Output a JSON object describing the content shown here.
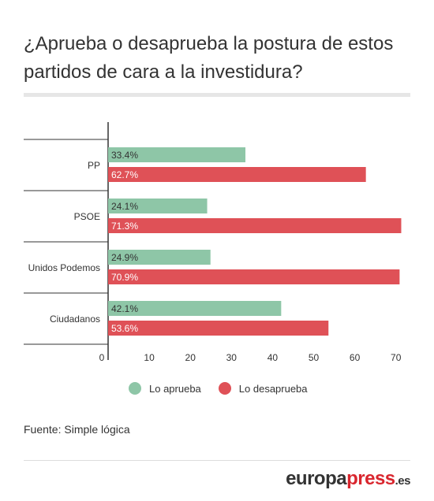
{
  "title": "¿Aprueba o desaprueba la postura de estos partidos de cara a la investidura?",
  "source": "Fuente: Simple lógica",
  "brand": {
    "part1": "europa",
    "part2": "press",
    "part3": ".es"
  },
  "colors": {
    "aprueba": "#8ec6a7",
    "desaprueba": "#df5157",
    "axis": "#333333",
    "text": "#333333"
  },
  "legend": [
    {
      "label": "Lo aprueba",
      "color": "#8ec6a7"
    },
    {
      "label": "Lo desaprueba",
      "color": "#df5157"
    }
  ],
  "chart_data": {
    "type": "bar",
    "orientation": "horizontal",
    "categories": [
      "PP",
      "PSOE",
      "Unidos Podemos",
      "Ciudadanos"
    ],
    "series": [
      {
        "name": "Lo aprueba",
        "values": [
          33.4,
          24.1,
          24.9,
          42.1
        ],
        "labels": [
          "33.4%",
          "24.1%",
          "24.9%",
          "42.1%"
        ],
        "color": "#8ec6a7"
      },
      {
        "name": "Lo desaprueba",
        "values": [
          62.7,
          71.3,
          70.9,
          53.6
        ],
        "labels": [
          "62.7%",
          "71.3%",
          "70.9%",
          "53.6%"
        ],
        "color": "#df5157"
      }
    ],
    "xticks": [
      0,
      10,
      20,
      30,
      40,
      50,
      60,
      70
    ],
    "xlim": [
      0,
      72
    ],
    "legend_position": "bottom"
  }
}
